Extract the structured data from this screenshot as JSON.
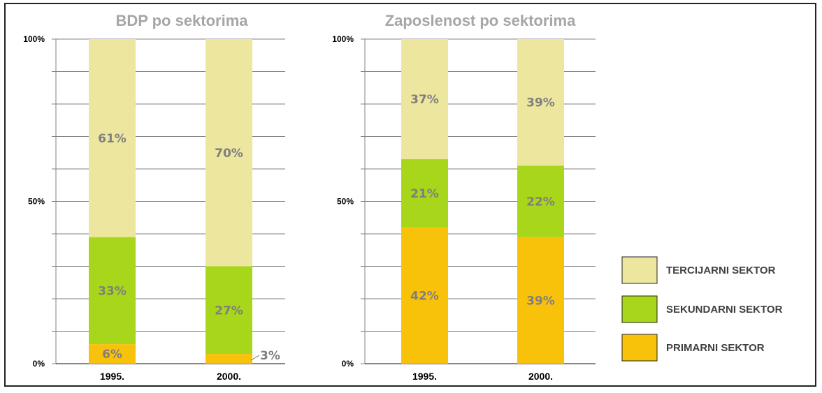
{
  "colors": {
    "tercijarni": "#ede69e",
    "sekundarni": "#a7d61a",
    "primarni": "#f9c20a",
    "grid": "#808080",
    "label": "#7f7f7f"
  },
  "y_ticks": [
    "0%",
    "50%",
    "100%"
  ],
  "chart_data": [
    {
      "type": "bar",
      "stacked": true,
      "title": "BDP po sektorima",
      "categories": [
        "1995.",
        "2000."
      ],
      "ylim": [
        0,
        100
      ],
      "grid": true,
      "series": [
        {
          "name": "PRIMARNI SEKTOR",
          "values": [
            6,
            3
          ],
          "labels": [
            "6%",
            "3%"
          ]
        },
        {
          "name": "SEKUNDARNI SEKTOR",
          "values": [
            33,
            27
          ],
          "labels": [
            "33%",
            "27%"
          ]
        },
        {
          "name": "TERCIJARNI SEKTOR",
          "values": [
            61,
            70
          ],
          "labels": [
            "61%",
            "70%"
          ]
        }
      ]
    },
    {
      "type": "bar",
      "stacked": true,
      "title": "Zaposlenost po sektorima",
      "categories": [
        "1995.",
        "2000."
      ],
      "ylim": [
        0,
        100
      ],
      "grid": true,
      "series": [
        {
          "name": "PRIMARNI SEKTOR",
          "values": [
            42,
            39
          ],
          "labels": [
            "42%",
            "39%"
          ]
        },
        {
          "name": "SEKUNDARNI SEKTOR",
          "values": [
            21,
            22
          ],
          "labels": [
            "21%",
            "22%"
          ]
        },
        {
          "name": "TERCIJARNI SEKTOR",
          "values": [
            37,
            39
          ],
          "labels": [
            "37%",
            "39%"
          ]
        }
      ]
    }
  ],
  "legend": {
    "placement": "bottom-right",
    "items": [
      {
        "label": "TERCIJARNI SEKTOR",
        "color": "#ede69e"
      },
      {
        "label": "SEKUNDARNI SEKTOR",
        "color": "#a7d61a"
      },
      {
        "label": "PRIMARNI SEKTOR",
        "color": "#f9c20a"
      }
    ]
  }
}
